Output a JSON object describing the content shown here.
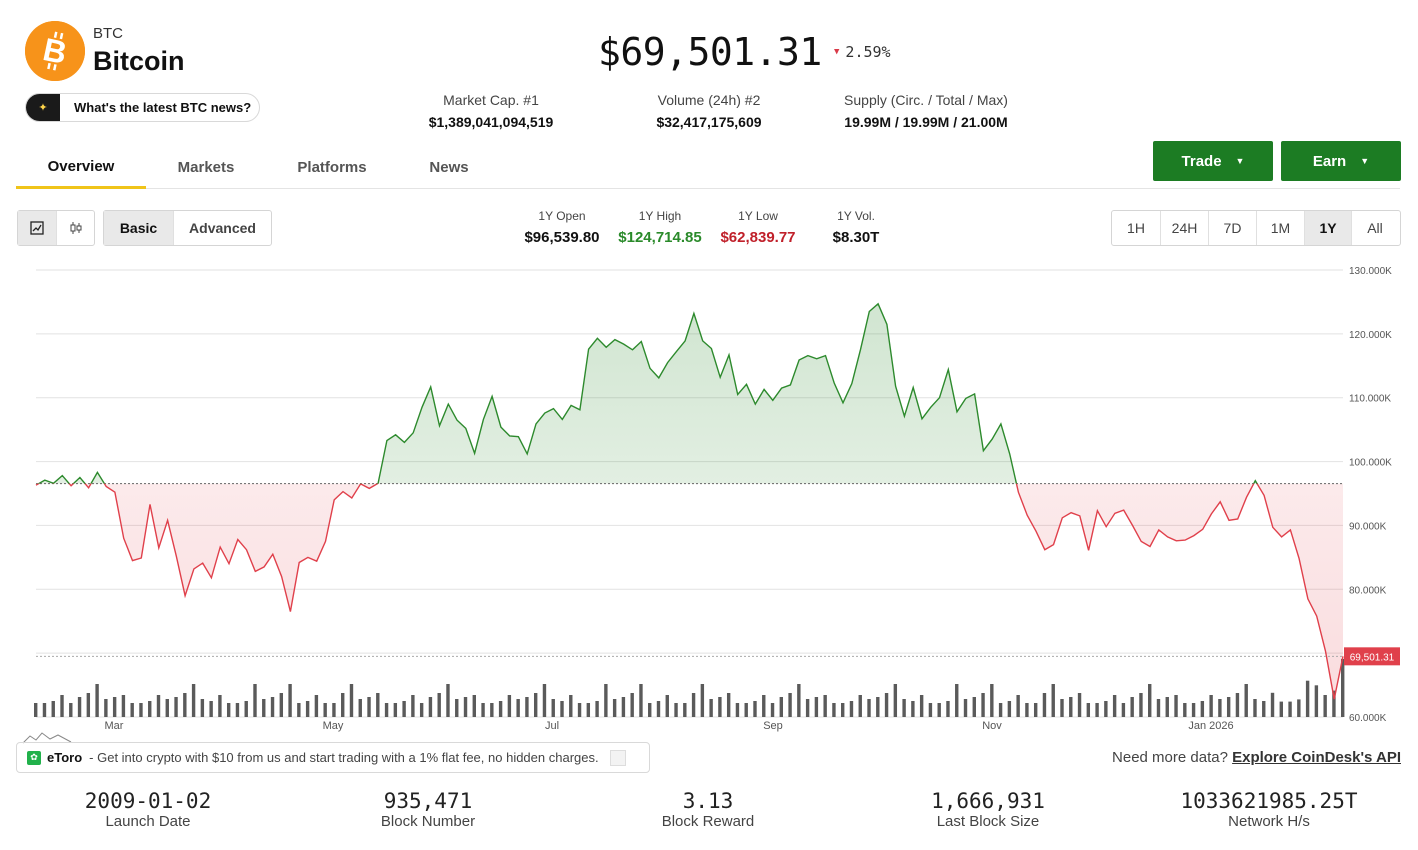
{
  "coin": {
    "symbol": "BTC",
    "name": "Bitcoin",
    "news_prompt": "What's the latest BTC news?",
    "price": "$69,501.31",
    "change": "2.59%",
    "change_direction": "down"
  },
  "header_stats": [
    {
      "label": "Market Cap. #1",
      "value": "$1,389,041,094,519"
    },
    {
      "label": "Volume (24h) #2",
      "value": "$32,417,175,609"
    },
    {
      "label": "Supply (Circ. / Total / Max)",
      "value": "19.99M / 19.99M / 21.00M"
    }
  ],
  "tabs": [
    "Overview",
    "Markets",
    "Platforms",
    "News"
  ],
  "active_tab": "Overview",
  "actions": {
    "trade": "Trade",
    "earn": "Earn"
  },
  "chart_modes": {
    "basic": "Basic",
    "advanced": "Advanced",
    "active": "Basic"
  },
  "year_stats": [
    {
      "label": "1Y Open",
      "value": "$96,539.80",
      "color": "#111111"
    },
    {
      "label": "1Y High",
      "value": "$124,714.85",
      "color": "#2a8a2a"
    },
    {
      "label": "1Y Low",
      "value": "$62,839.77",
      "color": "#c0202a"
    },
    {
      "label": "1Y Vol.",
      "value": "$8.30T",
      "color": "#111111"
    }
  ],
  "ranges": [
    "1H",
    "24H",
    "7D",
    "1M",
    "1Y",
    "All"
  ],
  "active_range": "1Y",
  "chart_data": {
    "type": "area",
    "y_ticks": [
      "130.000K",
      "120.000K",
      "110.000K",
      "100.000K",
      "90.000K",
      "80.000K",
      "70.000K",
      "60.000K"
    ],
    "ylim": [
      60000,
      130000
    ],
    "x_ticks": [
      "Mar",
      "May",
      "Jul",
      "Sep",
      "Nov",
      "Jan 2026"
    ],
    "baseline": 96539.8,
    "current_label": "69,501.31",
    "current_value": 69501.31,
    "colors": {
      "up": "#2d8a2d",
      "down": "#e0404b"
    },
    "series": [
      {
        "x": 0,
        "y": 96300
      },
      {
        "x": 1,
        "y": 97100
      },
      {
        "x": 2,
        "y": 96600
      },
      {
        "x": 3,
        "y": 97800
      },
      {
        "x": 4,
        "y": 96200
      },
      {
        "x": 5,
        "y": 97500
      },
      {
        "x": 6,
        "y": 95900
      },
      {
        "x": 7,
        "y": 98300
      },
      {
        "x": 8,
        "y": 96100
      },
      {
        "x": 9,
        "y": 95200
      },
      {
        "x": 10,
        "y": 88000
      },
      {
        "x": 11,
        "y": 84500
      },
      {
        "x": 12,
        "y": 84900
      },
      {
        "x": 13,
        "y": 93300
      },
      {
        "x": 14,
        "y": 86500
      },
      {
        "x": 15,
        "y": 90800
      },
      {
        "x": 16,
        "y": 85200
      },
      {
        "x": 17,
        "y": 79000
      },
      {
        "x": 18,
        "y": 83200
      },
      {
        "x": 19,
        "y": 84100
      },
      {
        "x": 20,
        "y": 81800
      },
      {
        "x": 21,
        "y": 86600
      },
      {
        "x": 22,
        "y": 84000
      },
      {
        "x": 23,
        "y": 87800
      },
      {
        "x": 24,
        "y": 86200
      },
      {
        "x": 25,
        "y": 82800
      },
      {
        "x": 26,
        "y": 83500
      },
      {
        "x": 27,
        "y": 85500
      },
      {
        "x": 28,
        "y": 82000
      },
      {
        "x": 29,
        "y": 76500
      },
      {
        "x": 30,
        "y": 84200
      },
      {
        "x": 31,
        "y": 85000
      },
      {
        "x": 32,
        "y": 84400
      },
      {
        "x": 33,
        "y": 87500
      },
      {
        "x": 34,
        "y": 94000
      },
      {
        "x": 35,
        "y": 95300
      },
      {
        "x": 36,
        "y": 94300
      },
      {
        "x": 37,
        "y": 96500
      },
      {
        "x": 38,
        "y": 95800
      },
      {
        "x": 39,
        "y": 96600
      },
      {
        "x": 40,
        "y": 103300
      },
      {
        "x": 41,
        "y": 104200
      },
      {
        "x": 42,
        "y": 103000
      },
      {
        "x": 43,
        "y": 104500
      },
      {
        "x": 44,
        "y": 108500
      },
      {
        "x": 45,
        "y": 111700
      },
      {
        "x": 46,
        "y": 105600
      },
      {
        "x": 47,
        "y": 109000
      },
      {
        "x": 48,
        "y": 106500
      },
      {
        "x": 49,
        "y": 105200
      },
      {
        "x": 50,
        "y": 101300
      },
      {
        "x": 51,
        "y": 106600
      },
      {
        "x": 52,
        "y": 110200
      },
      {
        "x": 53,
        "y": 105400
      },
      {
        "x": 54,
        "y": 104000
      },
      {
        "x": 55,
        "y": 103900
      },
      {
        "x": 56,
        "y": 101200
      },
      {
        "x": 57,
        "y": 105900
      },
      {
        "x": 58,
        "y": 107600
      },
      {
        "x": 59,
        "y": 108300
      },
      {
        "x": 60,
        "y": 106600
      },
      {
        "x": 61,
        "y": 108800
      },
      {
        "x": 62,
        "y": 108100
      },
      {
        "x": 63,
        "y": 117600
      },
      {
        "x": 64,
        "y": 119300
      },
      {
        "x": 65,
        "y": 117900
      },
      {
        "x": 66,
        "y": 119100
      },
      {
        "x": 67,
        "y": 118400
      },
      {
        "x": 68,
        "y": 117500
      },
      {
        "x": 69,
        "y": 118800
      },
      {
        "x": 70,
        "y": 114600
      },
      {
        "x": 71,
        "y": 113100
      },
      {
        "x": 72,
        "y": 115500
      },
      {
        "x": 73,
        "y": 117200
      },
      {
        "x": 74,
        "y": 118900
      },
      {
        "x": 75,
        "y": 123200
      },
      {
        "x": 76,
        "y": 118900
      },
      {
        "x": 77,
        "y": 117700
      },
      {
        "x": 78,
        "y": 113200
      },
      {
        "x": 79,
        "y": 116700
      },
      {
        "x": 80,
        "y": 110500
      },
      {
        "x": 81,
        "y": 112100
      },
      {
        "x": 82,
        "y": 109000
      },
      {
        "x": 83,
        "y": 111300
      },
      {
        "x": 84,
        "y": 109600
      },
      {
        "x": 85,
        "y": 111500
      },
      {
        "x": 86,
        "y": 112000
      },
      {
        "x": 87,
        "y": 115900
      },
      {
        "x": 88,
        "y": 116600
      },
      {
        "x": 89,
        "y": 116100
      },
      {
        "x": 90,
        "y": 116600
      },
      {
        "x": 91,
        "y": 112300
      },
      {
        "x": 92,
        "y": 109200
      },
      {
        "x": 93,
        "y": 112200
      },
      {
        "x": 94,
        "y": 117600
      },
      {
        "x": 95,
        "y": 123500
      },
      {
        "x": 96,
        "y": 124700
      },
      {
        "x": 97,
        "y": 121500
      },
      {
        "x": 98,
        "y": 111800
      },
      {
        "x": 99,
        "y": 107100
      },
      {
        "x": 100,
        "y": 111600
      },
      {
        "x": 101,
        "y": 106700
      },
      {
        "x": 102,
        "y": 108500
      },
      {
        "x": 103,
        "y": 110000
      },
      {
        "x": 104,
        "y": 114400
      },
      {
        "x": 105,
        "y": 107800
      },
      {
        "x": 106,
        "y": 109900
      },
      {
        "x": 107,
        "y": 110600
      },
      {
        "x": 108,
        "y": 101700
      },
      {
        "x": 109,
        "y": 103500
      },
      {
        "x": 110,
        "y": 105900
      },
      {
        "x": 111,
        "y": 101200
      },
      {
        "x": 112,
        "y": 95200
      },
      {
        "x": 113,
        "y": 91600
      },
      {
        "x": 114,
        "y": 89100
      },
      {
        "x": 115,
        "y": 86200
      },
      {
        "x": 116,
        "y": 87000
      },
      {
        "x": 117,
        "y": 91200
      },
      {
        "x": 118,
        "y": 92000
      },
      {
        "x": 119,
        "y": 91500
      },
      {
        "x": 120,
        "y": 86100
      },
      {
        "x": 121,
        "y": 92300
      },
      {
        "x": 122,
        "y": 89800
      },
      {
        "x": 123,
        "y": 91900
      },
      {
        "x": 124,
        "y": 92400
      },
      {
        "x": 125,
        "y": 90000
      },
      {
        "x": 126,
        "y": 87500
      },
      {
        "x": 127,
        "y": 86700
      },
      {
        "x": 128,
        "y": 89300
      },
      {
        "x": 129,
        "y": 88200
      },
      {
        "x": 130,
        "y": 87600
      },
      {
        "x": 131,
        "y": 87700
      },
      {
        "x": 132,
        "y": 88400
      },
      {
        "x": 133,
        "y": 89400
      },
      {
        "x": 134,
        "y": 91800
      },
      {
        "x": 135,
        "y": 93700
      },
      {
        "x": 136,
        "y": 90800
      },
      {
        "x": 137,
        "y": 91000
      },
      {
        "x": 138,
        "y": 94400
      },
      {
        "x": 139,
        "y": 97000
      },
      {
        "x": 140,
        "y": 94700
      },
      {
        "x": 141,
        "y": 89700
      },
      {
        "x": 142,
        "y": 88200
      },
      {
        "x": 143,
        "y": 89300
      },
      {
        "x": 144,
        "y": 84800
      },
      {
        "x": 145,
        "y": 78500
      },
      {
        "x": 146,
        "y": 75800
      },
      {
        "x": 147,
        "y": 70300
      },
      {
        "x": 148,
        "y": 62800
      },
      {
        "x": 149,
        "y": 69501.31
      }
    ],
    "volume": [
      14,
      18,
      12,
      20,
      16,
      24,
      15,
      13,
      19,
      22,
      14,
      30,
      36,
      24,
      18,
      33,
      25,
      30,
      27,
      21,
      16,
      12,
      20,
      23,
      31,
      18,
      14,
      17,
      26,
      34,
      22,
      19,
      24,
      16,
      13,
      20,
      27,
      35,
      28,
      21
    ]
  },
  "sponsor": {
    "brand": "eToro",
    "text": "- Get into crypto with $10 from us and start trading with a 1% flat fee, no hidden charges."
  },
  "api": {
    "lead": "Need more data?",
    "link": "Explore CoinDesk's API"
  },
  "footer_stats": [
    {
      "value": "2009-01-02",
      "label": "Launch Date"
    },
    {
      "value": "935,471",
      "label": "Block Number"
    },
    {
      "value": "3.13",
      "label": "Block Reward"
    },
    {
      "value": "1,666,931",
      "label": "Last Block Size"
    },
    {
      "value": "1033621985.25T",
      "label": "Network H/s"
    }
  ]
}
